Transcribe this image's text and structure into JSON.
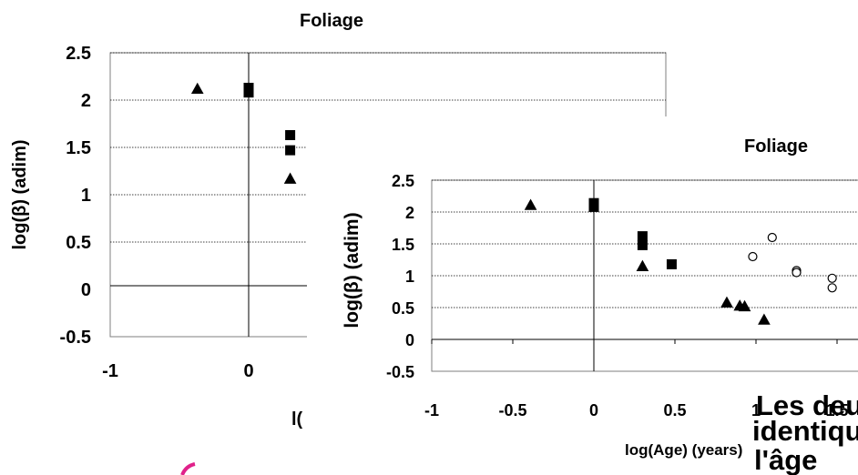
{
  "charts": {
    "back": {
      "title": "Foliage",
      "ylabel": "log(β) (adim)",
      "xlabel_fragment": "l("
    },
    "front": {
      "title": "Foliage",
      "ylabel": "log(β) (adim)",
      "xlabel": "log(Age) (years)"
    }
  },
  "overlay_text": [
    "Les deu",
    "identiqu",
    "l'âge"
  ],
  "colors": {
    "marker": "#000000",
    "grid": "#000000",
    "accent_arc": "#e0218a"
  },
  "chart_data": [
    {
      "type": "scatter",
      "title": "Foliage",
      "xlabel": "",
      "ylabel": "log(β) (adim)",
      "xlim": [
        -1,
        3
      ],
      "ylim": [
        -0.5,
        2.5
      ],
      "xticks": [
        "-1",
        "0"
      ],
      "yticks": [
        "-0.5",
        "0",
        "0.5",
        "1",
        "1.5",
        "2",
        "2.5"
      ],
      "grid": "horizontal dotted",
      "series": [
        {
          "marker": "triangle",
          "points": [
            [
              -0.37,
              2.12
            ],
            [
              0.3,
              1.17
            ]
          ]
        },
        {
          "marker": "square",
          "points": [
            [
              0.0,
              2.13
            ],
            [
              0.0,
              2.08
            ],
            [
              0.3,
              1.63
            ],
            [
              0.3,
              1.47
            ]
          ]
        }
      ]
    },
    {
      "type": "scatter",
      "title": "Foliage",
      "xlabel": "log(Age) (years)",
      "ylabel": "log(β) (adim)",
      "xlim": [
        -1,
        1.6
      ],
      "ylim": [
        -0.5,
        2.5
      ],
      "xticks": [
        "-1",
        "-0.5",
        "0",
        "0.5",
        "1",
        "1.5"
      ],
      "yticks": [
        "-0.5",
        "0",
        "0.5",
        "1",
        "1.5",
        "2",
        "2.5"
      ],
      "grid": "horizontal dotted",
      "series": [
        {
          "marker": "triangle",
          "points": [
            [
              -0.39,
              2.11
            ],
            [
              0.3,
              1.15
            ],
            [
              0.82,
              0.58
            ],
            [
              0.9,
              0.53
            ],
            [
              0.93,
              0.52
            ],
            [
              1.05,
              0.31
            ]
          ]
        },
        {
          "marker": "square",
          "points": [
            [
              0.0,
              2.14
            ],
            [
              0.0,
              2.08
            ],
            [
              0.3,
              1.62
            ],
            [
              0.3,
              1.48
            ],
            [
              0.48,
              1.18
            ]
          ]
        },
        {
          "marker": "circle",
          "points": [
            [
              0.98,
              1.3
            ],
            [
              1.1,
              1.6
            ],
            [
              1.25,
              1.08
            ],
            [
              1.25,
              1.05
            ],
            [
              1.47,
              0.96
            ],
            [
              1.47,
              0.81
            ]
          ]
        }
      ]
    }
  ]
}
